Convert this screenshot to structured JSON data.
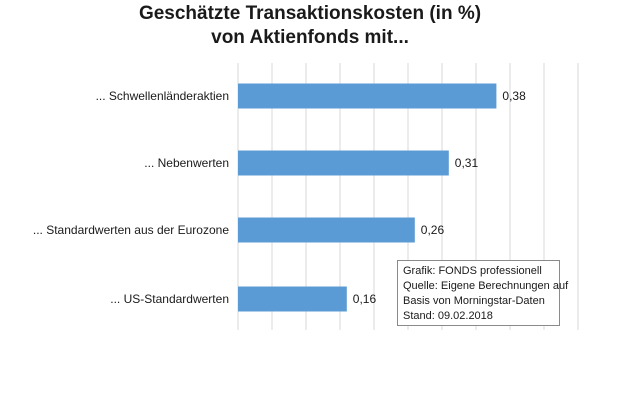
{
  "title": {
    "line1": "Geschätzte Transaktionskosten (in %)",
    "line2": "von Aktienfonds mit..."
  },
  "chart_data": {
    "type": "bar",
    "orientation": "horizontal",
    "title": "Geschätzte Transaktionskosten (in %) von Aktienfonds mit...",
    "categories": [
      "... Schwellenländeraktien",
      "... Nebenwerten",
      "... Standardwerten aus der Eurozone",
      "... US-Standardwerten"
    ],
    "values": [
      0.38,
      0.31,
      0.26,
      0.16
    ],
    "value_labels": [
      "0,38",
      "0,31",
      "0,26",
      "0,16"
    ],
    "xlim": [
      0,
      0.5
    ],
    "grid": "vertical",
    "bar_color": "#5b9bd5",
    "grid_color": "#d9d9d9"
  },
  "source_note": {
    "line1": "Grafik: FONDS professionell",
    "line2": "Quelle: Eigene Berechnungen auf",
    "line3": "Basis von Morningstar-Daten",
    "line4": "Stand: 09.02.2018"
  }
}
